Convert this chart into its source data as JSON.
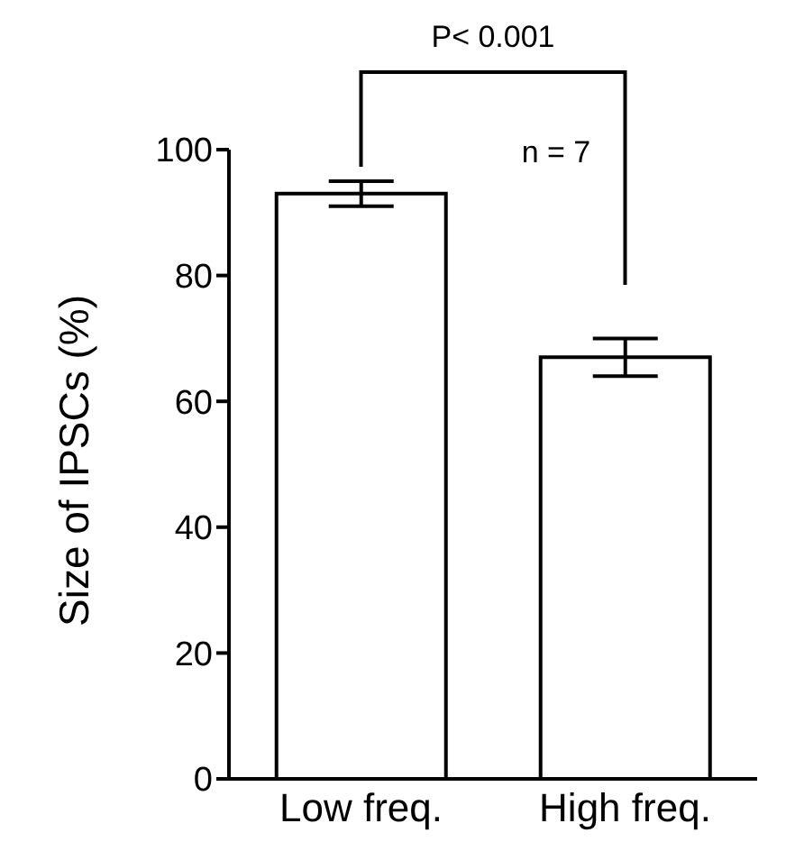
{
  "chart_data": {
    "type": "bar",
    "ylabel": "Size of IPSCs (%)",
    "categories": [
      "Low freq.",
      "High freq."
    ],
    "values": [
      93,
      67
    ],
    "errors": [
      2,
      3
    ],
    "color": "#ffffff",
    "ylim": [
      0,
      100
    ],
    "yticks": [
      0,
      20,
      40,
      60,
      80,
      100
    ],
    "annotations": [
      "P< 0.001",
      "n = 7"
    ]
  }
}
